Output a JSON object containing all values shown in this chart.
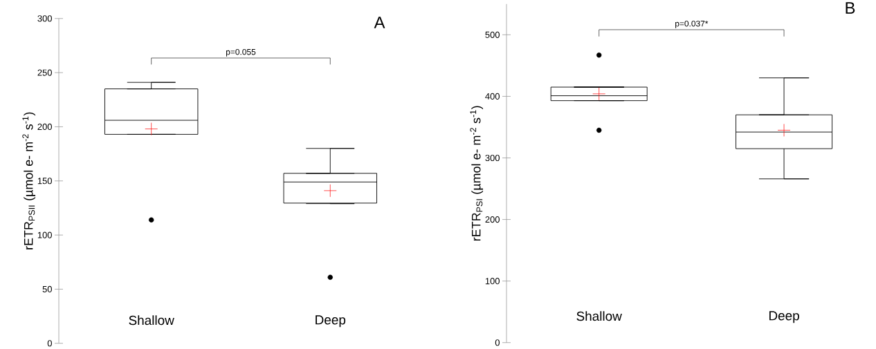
{
  "chart_data": [
    {
      "type": "box",
      "title": "A",
      "ylabel": "rETR$_{PSII}$ (µmol e- m$^{-2}$ s$^{-1}$)",
      "categories": [
        "Shallow",
        "Deep"
      ],
      "boxes": [
        {
          "low": 193,
          "q1": 193,
          "median": 206,
          "q3": 235,
          "high": 241,
          "mean": 198,
          "outliers": [
            114
          ]
        },
        {
          "low": 129,
          "q1": 129.5,
          "median": 149,
          "q3": 157,
          "high": 180,
          "mean": 141,
          "outliers": [
            61
          ]
        }
      ],
      "ylim": [
        0,
        300
      ],
      "yticks": [
        0,
        50,
        100,
        150,
        200,
        250,
        300
      ],
      "grid": false,
      "annotations": [
        "p=0.055"
      ]
    },
    {
      "type": "box",
      "title": "B",
      "ylabel": "rETR$_{PSI}$ (µmol e- m$^{-2}$ s$^{-1}$)",
      "categories": [
        "Shallow",
        "Deep"
      ],
      "boxes": [
        {
          "low": 393,
          "q1": 393,
          "median": 401,
          "q3": 415,
          "high": 415,
          "mean": 404,
          "outliers": [
            467,
            345
          ]
        },
        {
          "low": 266,
          "q1": 315,
          "median": 342,
          "q3": 370,
          "high": 430,
          "mean": 345
        }
      ],
      "ylim": [
        0,
        550
      ],
      "yticks": [
        0,
        100,
        200,
        300,
        400,
        500
      ],
      "grid": false,
      "annotations": [
        "p=0.037*"
      ]
    }
  ]
}
